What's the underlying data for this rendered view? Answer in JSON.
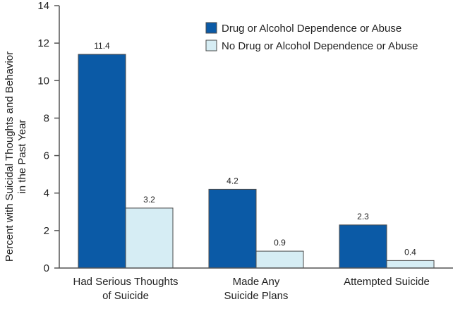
{
  "chart_data": {
    "type": "bar",
    "title": "",
    "xlabel": "",
    "ylabel_lines": [
      "Percent with Suicidal Thoughts and Behavior",
      "in the Past Year"
    ],
    "ylim": [
      0,
      14
    ],
    "yticks": [
      "0",
      "2",
      "4",
      "6",
      "8",
      "10",
      "12",
      "14"
    ],
    "categories": [
      [
        "Had Serious Thoughts",
        "of Suicide"
      ],
      [
        "Made Any",
        "Suicide Plans"
      ],
      [
        "Attempted Suicide"
      ]
    ],
    "series": [
      {
        "name": "Drug or Alcohol Dependence or Abuse",
        "color": "#0b5aa6",
        "values": [
          11.4,
          4.2,
          2.3
        ],
        "labels": [
          "11.4",
          "4.2",
          "2.3"
        ]
      },
      {
        "name": "No Drug or Alcohol Dependence or Abuse",
        "color": "#d6edf4",
        "values": [
          3.2,
          0.9,
          0.4
        ],
        "labels": [
          "3.2",
          "0.9",
          "0.4"
        ]
      }
    ],
    "grid": false,
    "legend_position": "top-right"
  }
}
